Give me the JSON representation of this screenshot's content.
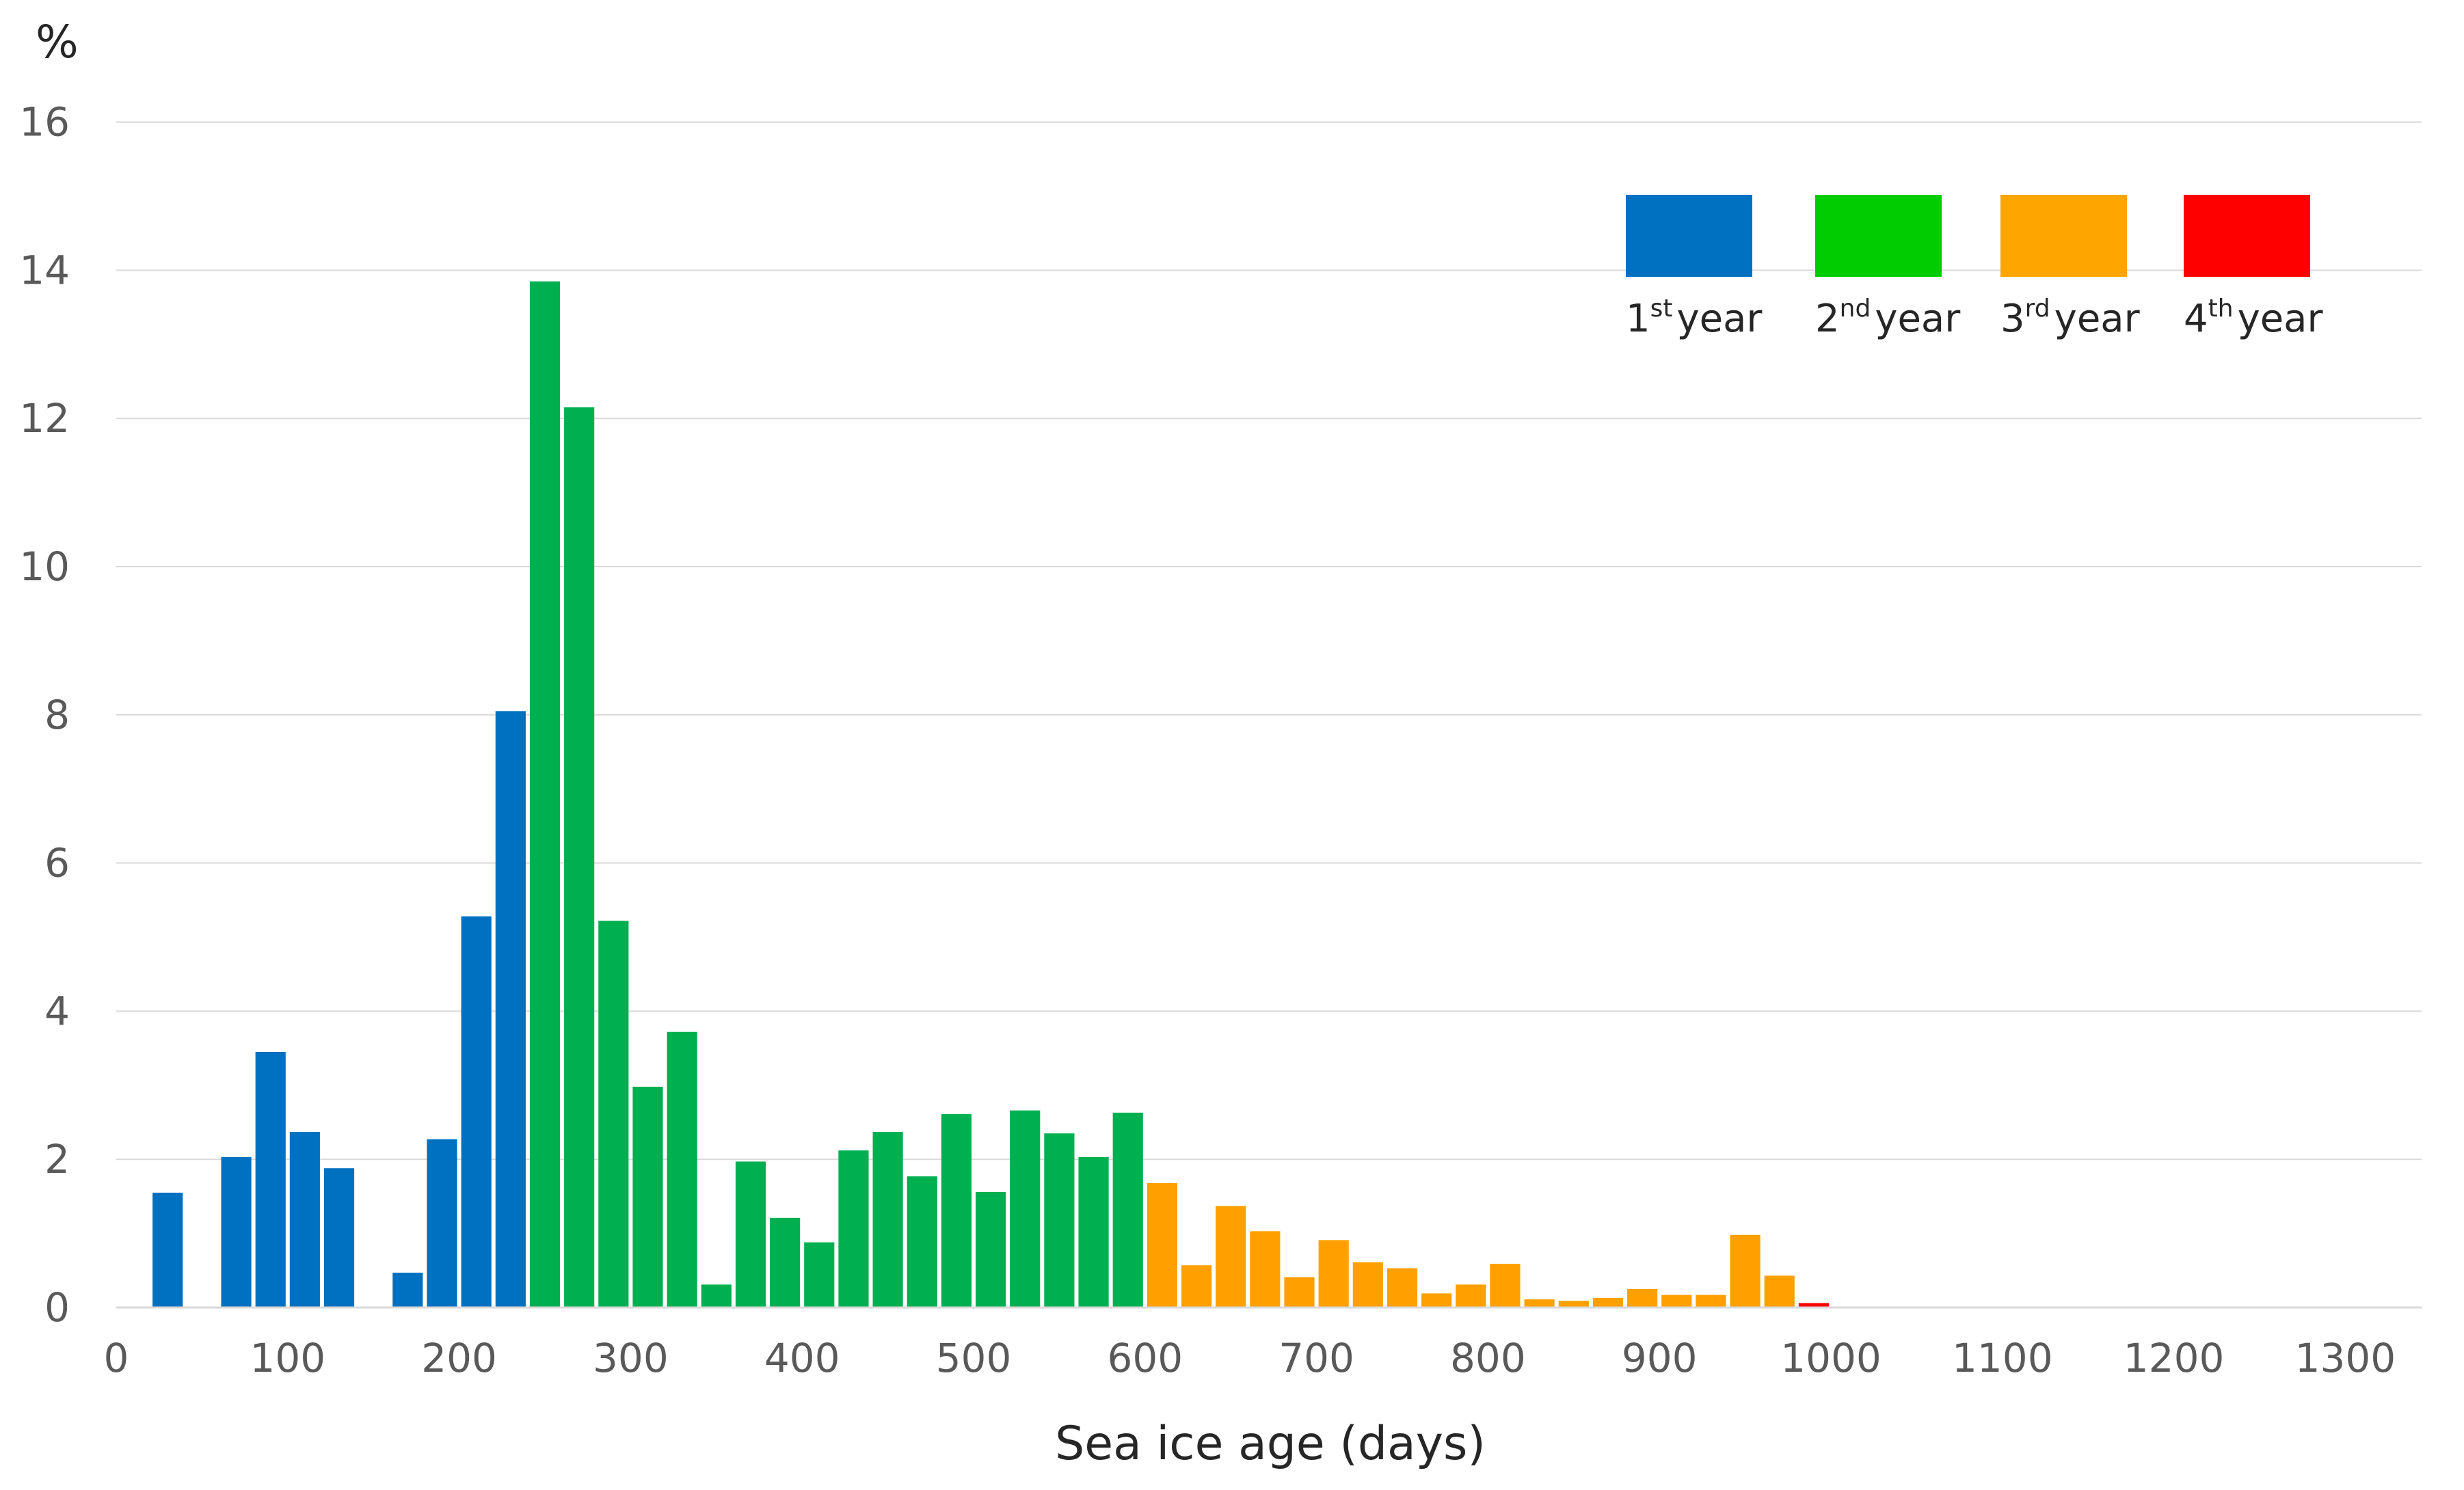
{
  "chart_data": {
    "type": "bar",
    "title": "",
    "xlabel": "Sea ice age (days)",
    "ylabel": "%",
    "xlim": [
      0,
      1350
    ],
    "ylim": [
      0,
      16
    ],
    "xticks": [
      0,
      100,
      200,
      300,
      400,
      500,
      600,
      700,
      800,
      900,
      1000,
      1100,
      1200,
      1300
    ],
    "yticks": [
      0,
      2,
      4,
      6,
      8,
      10,
      12,
      14,
      16
    ],
    "bin_width": 20,
    "grid": "horizontal",
    "legend_position": "top-right",
    "series": [
      {
        "name": "1st year",
        "color": "#0070C0",
        "x": [
          30,
          70,
          90,
          110,
          130,
          170,
          190,
          210,
          230
        ],
        "values": [
          1.55,
          2.03,
          3.45,
          2.37,
          1.88,
          0.47,
          2.27,
          5.28,
          8.05
        ]
      },
      {
        "name": "2nd year",
        "color": "#00B050",
        "x": [
          250,
          270,
          290,
          310,
          330,
          350,
          370,
          390,
          410,
          430,
          450,
          470,
          490,
          510,
          530,
          550,
          570,
          590
        ],
        "values": [
          13.85,
          12.15,
          5.22,
          2.98,
          3.72,
          0.31,
          1.97,
          1.21,
          0.88,
          2.12,
          2.37,
          1.77,
          2.61,
          1.56,
          2.66,
          2.35,
          2.03,
          2.63
        ]
      },
      {
        "name": "3rd year",
        "color": "#FFA000",
        "x": [
          610,
          630,
          650,
          670,
          690,
          710,
          730,
          750,
          770,
          790,
          810,
          830,
          850,
          870,
          890,
          910,
          930,
          950,
          970
        ],
        "values": [
          1.68,
          0.57,
          1.37,
          1.03,
          0.41,
          0.91,
          0.61,
          0.53,
          0.19,
          0.31,
          0.59,
          0.11,
          0.09,
          0.13,
          0.25,
          0.17,
          0.17,
          0.98,
          0.43
        ]
      },
      {
        "name": "4th year",
        "color": "#FF0000",
        "x": [
          990
        ],
        "values": [
          0.06
        ]
      }
    ],
    "legend": [
      {
        "number": "1",
        "suffix": "st",
        "word": "year",
        "color": "#0070C0"
      },
      {
        "number": "2",
        "suffix": "nd",
        "word": "year",
        "color": "#00CC00"
      },
      {
        "number": "3",
        "suffix": "rd",
        "word": "year",
        "color": "#FFA500"
      },
      {
        "number": "4",
        "suffix": "th",
        "word": "year",
        "color": "#FF0000"
      }
    ]
  }
}
